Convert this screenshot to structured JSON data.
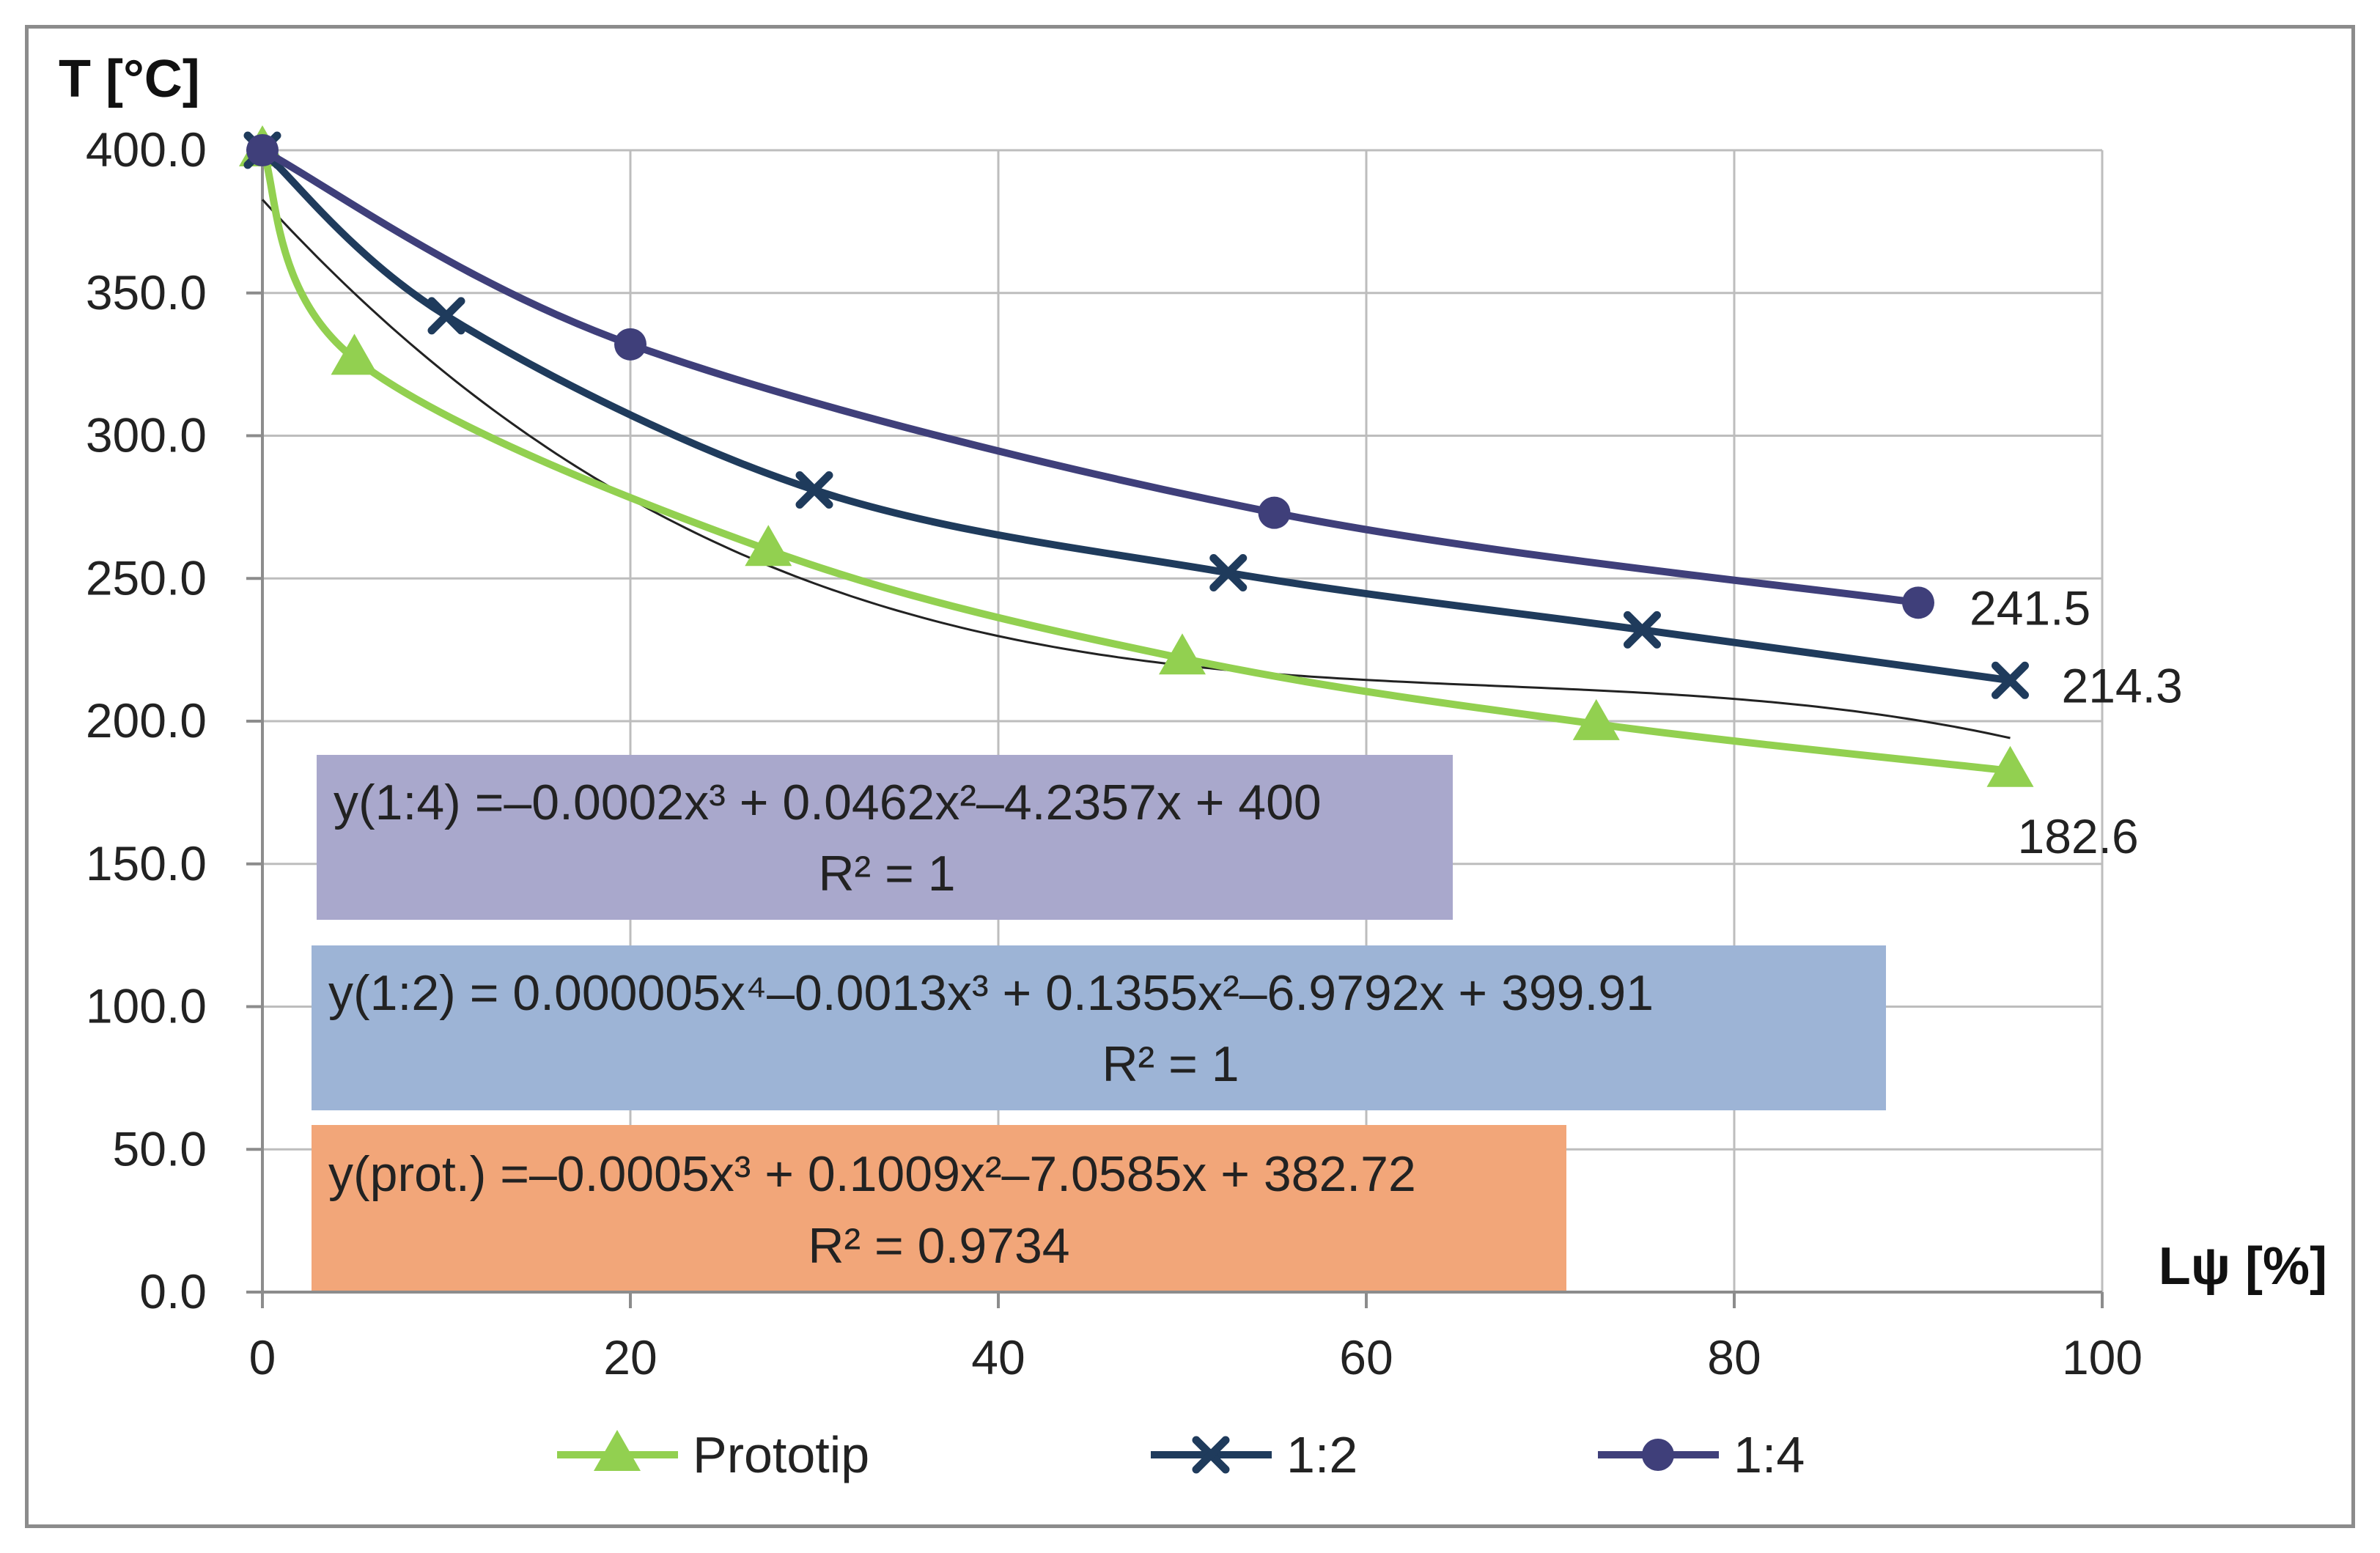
{
  "chart_data": {
    "type": "line",
    "xlabel": "Lψ [%]",
    "ylabel": "T [°C]",
    "xlim": [
      0,
      100
    ],
    "ylim": [
      0,
      400
    ],
    "x_ticks": [
      "0",
      "20",
      "40",
      "60",
      "80",
      "100"
    ],
    "y_ticks": [
      "0.0",
      "50.0",
      "100.0",
      "150.0",
      "200.0",
      "250.0",
      "300.0",
      "350.0",
      "400.0"
    ],
    "grid": true,
    "legend_position": "bottom",
    "series": [
      {
        "name": "Prototip",
        "color": "#92d050",
        "marker": "triangle",
        "x": [
          0,
          5,
          27.5,
          50,
          72.5,
          95
        ],
        "y": [
          400,
          327,
          260,
          222,
          199,
          182.6
        ],
        "end_label": "182.6"
      },
      {
        "name": "1:2",
        "color": "#1f3b5c",
        "marker": "x",
        "x": [
          0,
          10,
          30,
          52.5,
          75,
          95
        ],
        "y": [
          400,
          342,
          281,
          252,
          232,
          214.3
        ],
        "end_label": "214.3"
      },
      {
        "name": "1:4",
        "color": "#3f3f7a",
        "marker": "circle",
        "x": [
          0,
          20,
          55,
          90
        ],
        "y": [
          400,
          332,
          273,
          241.5
        ],
        "end_label": "241.5"
      }
    ],
    "trendline": {
      "color": "#222222",
      "coefficients": [
        382.72,
        -7.0585,
        0.1009,
        -0.0005
      ],
      "x_range": [
        0,
        95
      ]
    },
    "equations": [
      {
        "text": "y(1:4) =‒0.0002x³ + 0.0462x²‒4.2357x + 400",
        "r2": "R² = 1",
        "color": "#a9a8cc"
      },
      {
        "text": "y(1:2) =      0.000005x⁴‒0.0013x³ + 0.1355x²‒6.9792x + 399.91",
        "r2": "R² = 1",
        "color": "#9db4d6"
      },
      {
        "text": "y(prot.) =‒0.0005x³ + 0.1009x²‒7.0585x + 382.72",
        "r2": "R² = 0.9734",
        "color": "#f2a679"
      }
    ]
  }
}
